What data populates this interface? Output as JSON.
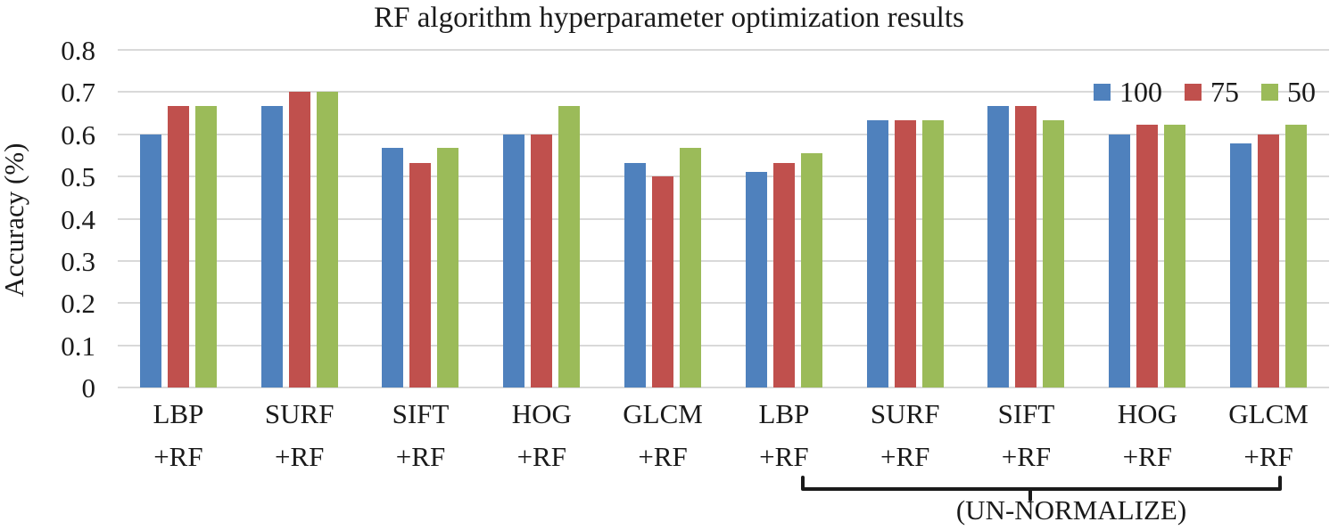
{
  "chart_data": {
    "type": "bar",
    "title": "RF algorithm hyperparameter optimization results",
    "ylabel": "Accuracy (%)",
    "xlabel": "",
    "ylim": [
      0,
      0.8
    ],
    "ytick_labels": [
      "0.8",
      "0.7",
      "0.6",
      "0.5",
      "0.4",
      "0.3",
      "0.2",
      "0.1",
      "0"
    ],
    "ytick_values": [
      0.8,
      0.7,
      0.6,
      0.5,
      0.4,
      0.3,
      0.2,
      0.1,
      0
    ],
    "grid": "horizontal gridlines at each 0.1",
    "legend_position": "top-right",
    "categories": [
      "LBP",
      "SURF",
      "SIFT",
      "HOG",
      "GLCM",
      "LBP",
      "SURF",
      "SIFT",
      "HOG",
      "GLCM"
    ],
    "category_suffix": "+RF",
    "series": [
      {
        "name": "100",
        "color": "#4F81BD",
        "values": [
          0.6,
          0.667,
          0.567,
          0.6,
          0.533,
          0.511,
          0.633,
          0.667,
          0.6,
          0.578
        ]
      },
      {
        "name": "75",
        "color": "#C0504D",
        "values": [
          0.667,
          0.7,
          0.533,
          0.6,
          0.5,
          0.533,
          0.633,
          0.667,
          0.622,
          0.6
        ]
      },
      {
        "name": "50",
        "color": "#9BBB59",
        "values": [
          0.667,
          0.7,
          0.567,
          0.667,
          0.567,
          0.556,
          0.633,
          0.633,
          0.622,
          0.622
        ]
      }
    ],
    "annotation": {
      "label": "(UN-NORMALIZE)",
      "applies_to_categories": [
        6,
        7,
        8,
        9,
        10
      ]
    }
  },
  "colors": {
    "gridline": "#D9D9D9",
    "text": "#1A1A1A",
    "background": "#FFFFFF"
  }
}
